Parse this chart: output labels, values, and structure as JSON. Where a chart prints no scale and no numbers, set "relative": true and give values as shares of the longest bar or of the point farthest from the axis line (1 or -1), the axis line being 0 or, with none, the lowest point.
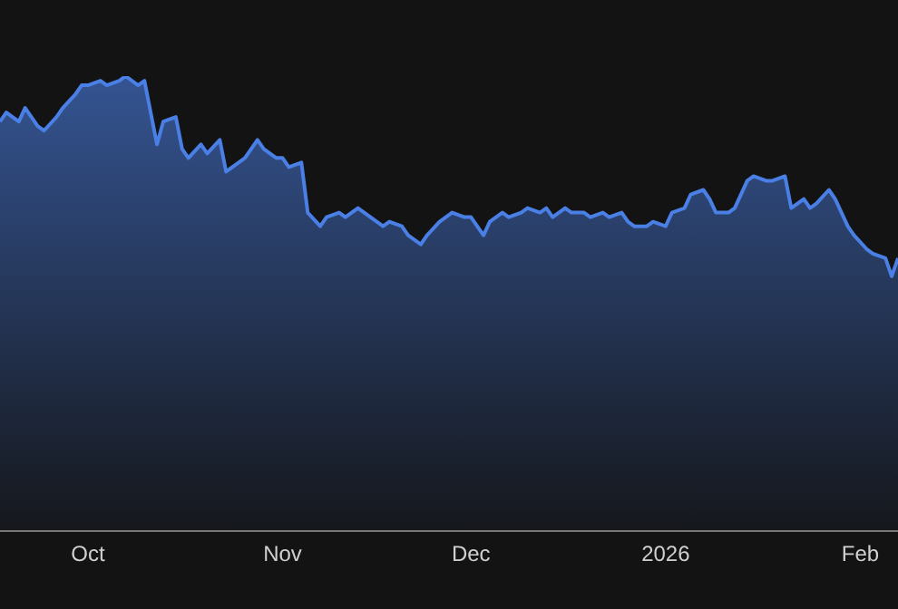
{
  "chart_data": {
    "type": "area",
    "relative": true,
    "grid": false,
    "legend": false,
    "marker": "none",
    "xlim": [
      "2025-09-17",
      "2026-02-07"
    ],
    "xticks": [
      {
        "value": "2025-10-01",
        "label": "Oct"
      },
      {
        "value": "2025-11-01",
        "label": "Nov"
      },
      {
        "value": "2025-12-01",
        "label": "Dec"
      },
      {
        "value": "2026-01-01",
        "label": "2026"
      },
      {
        "value": "2026-02-01",
        "label": "Feb"
      }
    ],
    "x": [
      "2025-09-17",
      "2025-09-18",
      "2025-09-20",
      "2025-09-21",
      "2025-09-23",
      "2025-09-24",
      "2025-09-26",
      "2025-09-27",
      "2025-09-29",
      "2025-09-30",
      "2025-10-01",
      "2025-10-03",
      "2025-10-04",
      "2025-10-06",
      "2025-10-07",
      "2025-10-09",
      "2025-10-10",
      "2025-10-12",
      "2025-10-13",
      "2025-10-15",
      "2025-10-16",
      "2025-10-17",
      "2025-10-19",
      "2025-10-20",
      "2025-10-22",
      "2025-10-23",
      "2025-10-25",
      "2025-10-26",
      "2025-10-28",
      "2025-10-29",
      "2025-10-31",
      "2025-11-01",
      "2025-11-02",
      "2025-11-04",
      "2025-11-05",
      "2025-11-07",
      "2025-11-08",
      "2025-11-10",
      "2025-11-11",
      "2025-11-13",
      "2025-11-14",
      "2025-11-15",
      "2025-11-17",
      "2025-11-18",
      "2025-11-20",
      "2025-11-21",
      "2025-11-23",
      "2025-11-24",
      "2025-11-26",
      "2025-11-27",
      "2025-11-28",
      "2025-11-30",
      "2025-12-01",
      "2025-12-03",
      "2025-12-04",
      "2025-12-06",
      "2025-12-07",
      "2025-12-09",
      "2025-12-10",
      "2025-12-12",
      "2025-12-13",
      "2025-12-14",
      "2025-12-16",
      "2025-12-17",
      "2025-12-19",
      "2025-12-20",
      "2025-12-22",
      "2025-12-23",
      "2025-12-25",
      "2025-12-26",
      "2025-12-27",
      "2025-12-29",
      "2025-12-30",
      "2026-01-01",
      "2026-01-02",
      "2026-01-04",
      "2026-01-05",
      "2026-01-07",
      "2026-01-08",
      "2026-01-09",
      "2026-01-11",
      "2026-01-12",
      "2026-01-14",
      "2026-01-15",
      "2026-01-17",
      "2026-01-18",
      "2026-01-20",
      "2026-01-21",
      "2026-01-23",
      "2026-01-24",
      "2026-01-25",
      "2026-01-27",
      "2026-01-28",
      "2026-01-30",
      "2026-01-31",
      "2026-02-02",
      "2026-02-03",
      "2026-02-05",
      "2026-02-06",
      "2026-02-07"
    ],
    "series": [
      {
        "color": "#4a7fe6",
        "values": [
          0.9,
          0.92,
          0.9,
          0.93,
          0.89,
          0.88,
          0.91,
          0.93,
          0.96,
          0.98,
          0.98,
          0.99,
          0.98,
          0.99,
          1,
          0.98,
          0.99,
          0.85,
          0.9,
          0.91,
          0.84,
          0.82,
          0.85,
          0.83,
          0.86,
          0.79,
          0.81,
          0.82,
          0.86,
          0.84,
          0.82,
          0.82,
          0.8,
          0.81,
          0.7,
          0.67,
          0.69,
          0.7,
          0.69,
          0.71,
          0.7,
          0.69,
          0.67,
          0.68,
          0.67,
          0.65,
          0.63,
          0.65,
          0.68,
          0.69,
          0.7,
          0.69,
          0.69,
          0.65,
          0.68,
          0.7,
          0.69,
          0.7,
          0.71,
          0.7,
          0.71,
          0.69,
          0.71,
          0.7,
          0.7,
          0.69,
          0.7,
          0.69,
          0.7,
          0.68,
          0.67,
          0.67,
          0.68,
          0.67,
          0.7,
          0.71,
          0.74,
          0.75,
          0.73,
          0.7,
          0.7,
          0.71,
          0.77,
          0.78,
          0.77,
          0.77,
          0.78,
          0.71,
          0.73,
          0.71,
          0.72,
          0.75,
          0.73,
          0.67,
          0.65,
          0.62,
          0.61,
          0.6,
          0.56,
          0.6
        ]
      }
    ]
  }
}
